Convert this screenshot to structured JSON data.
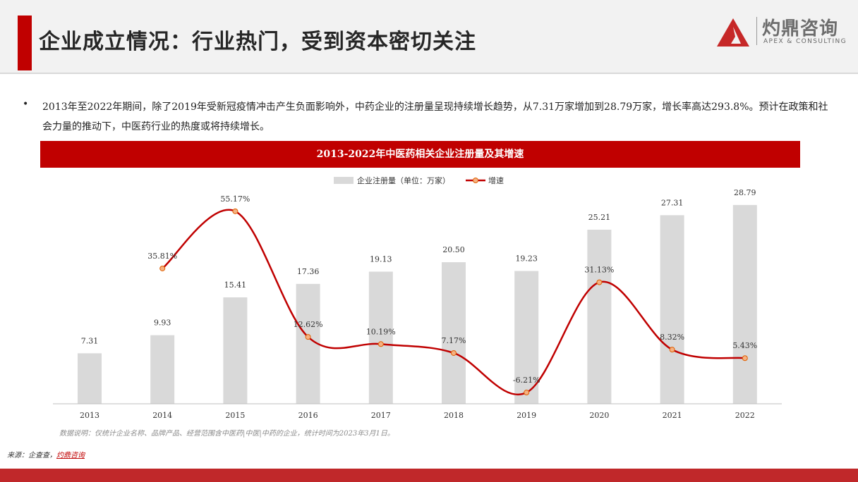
{
  "header": {
    "title": "企业成立情况：行业热门，受到资本密切关注",
    "logo_cn": "灼鼎咨询",
    "logo_en": "APEX & CONSULTING"
  },
  "body": {
    "bullet": "•",
    "paragraph": "2013年至2022年期间，除了2019年受新冠疫情冲击产生负面影响外，中药企业的注册量呈现持续增长趋势，从7.31万家增加到28.79万家，增长率高达293.8%。预计在政策和社会力量的推动下，中医药行业的热度或将持续增长。"
  },
  "chart_data": {
    "type": "bar+line",
    "title": "2013-2022年中医药相关企业注册量及其增速",
    "categories": [
      "2013",
      "2014",
      "2015",
      "2016",
      "2017",
      "2018",
      "2019",
      "2020",
      "2021",
      "2022"
    ],
    "series": [
      {
        "name": "企业注册量（单位：万家）",
        "type": "bar",
        "values": [
          7.31,
          9.93,
          15.41,
          17.36,
          19.13,
          20.5,
          19.23,
          25.21,
          27.31,
          28.79
        ],
        "labels": [
          "7.31",
          "9.93",
          "15.41",
          "17.36",
          "19.13",
          "20.50",
          "19.23",
          "25.21",
          "27.31",
          "28.79"
        ]
      },
      {
        "name": "增速",
        "type": "line",
        "values": [
          null,
          35.81,
          55.17,
          12.62,
          10.19,
          7.17,
          -6.21,
          31.13,
          8.32,
          5.43
        ],
        "labels": [
          "",
          "35.81%",
          "55.17%",
          "12.62%",
          "10.19%",
          "7.17%",
          "-6.21%",
          "31.13%",
          "8.32%",
          "5.43%"
        ]
      }
    ],
    "legend_placement": "top-center",
    "colors": {
      "bar": "#d9d9d9",
      "line": "#c00000",
      "marker": "#f4b183"
    }
  },
  "footer": {
    "note": "数据说明：仅统计企业名称、品牌产品、经营范围含中医药|中医|中药的企业，统计时间为2023年3月1日。",
    "source_prefix": "来源：企查查，",
    "source_link": "灼鼎咨询"
  }
}
